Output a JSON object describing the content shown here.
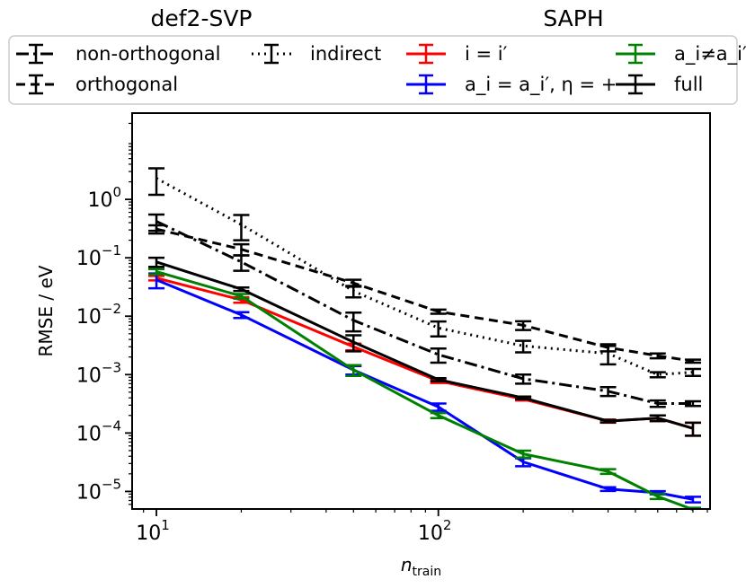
{
  "chart_data": {
    "type": "line",
    "title": "",
    "xlabel_base": "n",
    "xlabel_sub": "train",
    "ylabel": "RMSE / eV",
    "x_scale": "log",
    "y_scale": "log",
    "xlim": [
      8.2,
      920
    ],
    "ylim": [
      5e-06,
      30
    ],
    "grid": false,
    "legend_position": "top",
    "legend_groups": [
      "def2-SVP",
      "SAPH"
    ],
    "colors": {
      "black": "#000000",
      "red": "#ff0000",
      "blue": "#0000ff",
      "green": "#008000",
      "frame": "#000000"
    },
    "x_ticks": [
      {
        "value": 10,
        "base": "10",
        "exp": "1"
      },
      {
        "value": 100,
        "base": "10",
        "exp": "2"
      }
    ],
    "y_ticks": [
      {
        "value": 1,
        "base": "10",
        "exp": "0"
      },
      {
        "value": 0.1,
        "base": "10",
        "exp": "−1"
      },
      {
        "value": 0.01,
        "base": "10",
        "exp": "−2"
      },
      {
        "value": 0.001,
        "base": "10",
        "exp": "−3"
      },
      {
        "value": 0.0001,
        "base": "10",
        "exp": "−4"
      },
      {
        "value": 1e-05,
        "base": "10",
        "exp": "−5"
      }
    ],
    "series": [
      {
        "legend": "non-orthogonal",
        "color": "#000000",
        "dash": "14 5 3 5",
        "x": [
          10,
          20,
          50,
          100,
          200,
          400,
          600,
          800
        ],
        "y": [
          0.42,
          0.085,
          0.0085,
          0.0022,
          0.00085,
          0.00052,
          0.00032,
          0.00032
        ],
        "err": [
          0.13,
          0.025,
          0.003,
          0.0006,
          0.00015,
          9e-05,
          4e-05,
          3e-05
        ]
      },
      {
        "legend": "orthogonal",
        "color": "#000000",
        "dash": "10 6",
        "x": [
          10,
          20,
          50,
          100,
          200,
          400,
          600,
          800
        ],
        "y": [
          0.31,
          0.14,
          0.037,
          0.012,
          0.007,
          0.0029,
          0.0021,
          0.0017
        ],
        "err": [
          0.05,
          0.03,
          0.005,
          0.001,
          0.0012,
          0.0004,
          0.0002,
          0.0001
        ]
      },
      {
        "legend": "indirect",
        "color": "#000000",
        "dash": "2 5",
        "x": [
          10,
          20,
          50,
          100,
          200,
          400,
          600,
          800
        ],
        "y": [
          2.3,
          0.37,
          0.027,
          0.0063,
          0.0031,
          0.0023,
          0.001,
          0.0011
        ],
        "err": [
          1.1,
          0.17,
          0.006,
          0.0018,
          0.0007,
          0.0008,
          0.0001,
          0.00015
        ]
      },
      {
        "legend": "i = i′",
        "color": "#ff0000",
        "dash": "",
        "x": [
          10,
          20,
          50,
          100,
          200,
          400,
          600,
          800
        ],
        "y": [
          0.045,
          0.019,
          0.003,
          0.00078,
          0.00038,
          0.00016,
          0.00018,
          0.00012
        ],
        "err": [
          0.004,
          0.002,
          0.0004,
          6e-05,
          2e-05,
          1e-05,
          2e-05,
          3e-05
        ]
      },
      {
        "legend": "a_i = a_i′, η = +",
        "color": "#0000ff",
        "dash": "",
        "x": [
          10,
          20,
          50,
          100,
          200,
          400,
          600,
          800
        ],
        "y": [
          0.042,
          0.0105,
          0.0012,
          0.00028,
          3.2e-05,
          1.1e-05,
          9.5e-06,
          7.3e-06
        ],
        "err": [
          0.012,
          0.0012,
          0.0002,
          4e-05,
          5e-06,
          8e-07,
          6e-07,
          8e-07
        ]
      },
      {
        "legend": "a_i≠a_i′",
        "color": "#008000",
        "dash": "",
        "x": [
          10,
          20,
          50,
          100,
          200,
          400,
          600,
          800
        ],
        "y": [
          0.058,
          0.022,
          0.0012,
          0.0002,
          4.4e-05,
          2.2e-05,
          8.2e-06,
          4.9e-06
        ],
        "err": [
          0.006,
          0.002,
          0.00025,
          2e-05,
          6e-06,
          2e-06,
          8e-07,
          3e-07
        ]
      },
      {
        "legend": "full",
        "color": "#000000",
        "dash": "",
        "x": [
          10,
          20,
          50,
          100,
          200,
          400,
          600,
          800
        ],
        "y": [
          0.085,
          0.029,
          0.0036,
          0.00082,
          0.0004,
          0.00016,
          0.00018,
          0.00012
        ],
        "err": [
          0.015,
          0.002,
          0.0011,
          5e-05,
          2e-05,
          8e-06,
          2e-05,
          3e-05
        ]
      }
    ]
  }
}
